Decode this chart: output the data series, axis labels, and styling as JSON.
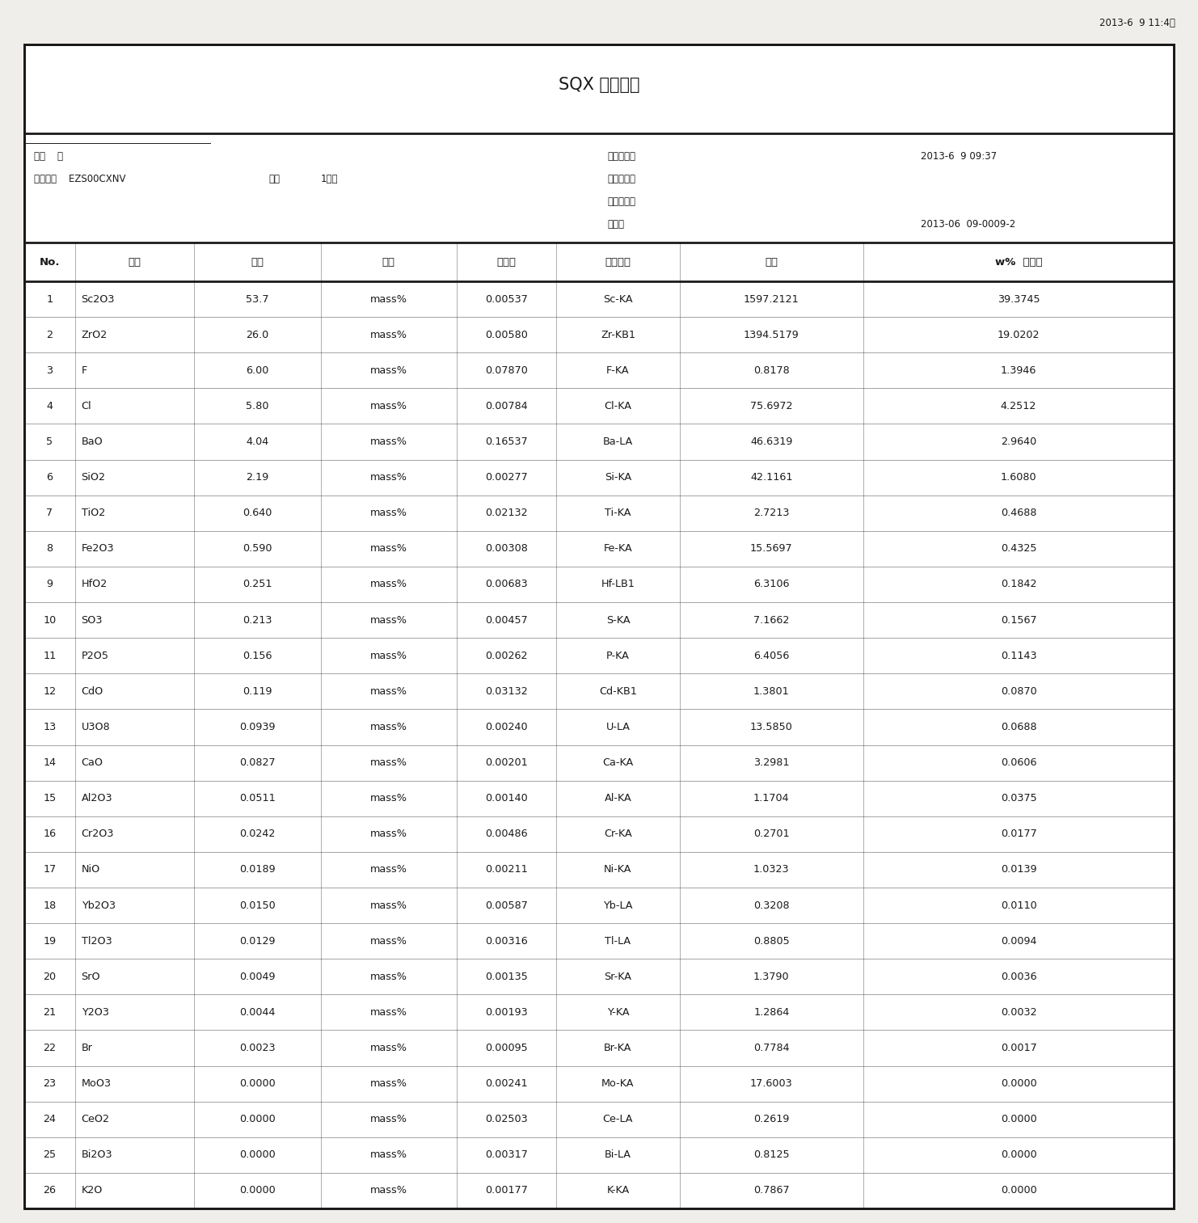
{
  "title": "SQX 计算结果",
  "timestamp_top": "2013-6  9 11:4：",
  "header_row1_left": "样品    号",
  "header_row2_left": "分析方法    EZS00CXNV",
  "header_row2_mid1": "模式",
  "header_row2_mid2": "1分析",
  "header_right_lines": [
    "分析日期：",
    "开始日期：",
    "结束日期：",
    "文件："
  ],
  "date1": "2013-6  9 09:37",
  "date2": "2013-06  09-0009-2",
  "col_headers": [
    "No.",
    "组分",
    "结果",
    "单位",
    "标准差",
    "元素谱线",
    "强度",
    "w%  《）》"
  ],
  "rows": [
    [
      "1",
      "Sc2O3",
      "53.7",
      "mass%",
      "0.00537",
      "Sc-KA",
      "1597.2121",
      "39.3745"
    ],
    [
      "2",
      "ZrO2",
      "26.0",
      "mass%",
      "0.00580",
      "Zr-KB1",
      "1394.5179",
      "19.0202"
    ],
    [
      "3",
      "F",
      "6.00",
      "mass%",
      "0.07870",
      "F-KA",
      "0.8178",
      "1.3946"
    ],
    [
      "4",
      "Cl",
      "5.80",
      "mass%",
      "0.00784",
      "Cl-KA",
      "75.6972",
      "4.2512"
    ],
    [
      "5",
      "BaO",
      "4.04",
      "mass%",
      "0.16537",
      "Ba-LA",
      "46.6319",
      "2.9640"
    ],
    [
      "6",
      "SiO2",
      "2.19",
      "mass%",
      "0.00277",
      "Si-KA",
      "42.1161",
      "1.6080"
    ],
    [
      "7",
      "TiO2",
      "0.640",
      "mass%",
      "0.02132",
      "Ti-KA",
      "2.7213",
      "0.4688"
    ],
    [
      "8",
      "Fe2O3",
      "0.590",
      "mass%",
      "0.00308",
      "Fe-KA",
      "15.5697",
      "0.4325"
    ],
    [
      "9",
      "HfO2",
      "0.251",
      "mass%",
      "0.00683",
      "Hf-LB1",
      "6.3106",
      "0.1842"
    ],
    [
      "10",
      "SO3",
      "0.213",
      "mass%",
      "0.00457",
      "S-KA",
      "7.1662",
      "0.1567"
    ],
    [
      "11",
      "P2O5",
      "0.156",
      "mass%",
      "0.00262",
      "P-KA",
      "6.4056",
      "0.1143"
    ],
    [
      "12",
      "CdO",
      "0.119",
      "mass%",
      "0.03132",
      "Cd-KB1",
      "1.3801",
      "0.0870"
    ],
    [
      "13",
      "U3O8",
      "0.0939",
      "mass%",
      "0.00240",
      "U-LA",
      "13.5850",
      "0.0688"
    ],
    [
      "14",
      "CaO",
      "0.0827",
      "mass%",
      "0.00201",
      "Ca-KA",
      "3.2981",
      "0.0606"
    ],
    [
      "15",
      "Al2O3",
      "0.0511",
      "mass%",
      "0.00140",
      "Al-KA",
      "1.1704",
      "0.0375"
    ],
    [
      "16",
      "Cr2O3",
      "0.0242",
      "mass%",
      "0.00486",
      "Cr-KA",
      "0.2701",
      "0.0177"
    ],
    [
      "17",
      "NiO",
      "0.0189",
      "mass%",
      "0.00211",
      "Ni-KA",
      "1.0323",
      "0.0139"
    ],
    [
      "18",
      "Yb2O3",
      "0.0150",
      "mass%",
      "0.00587",
      "Yb-LA",
      "0.3208",
      "0.0110"
    ],
    [
      "19",
      "Tl2O3",
      "0.0129",
      "mass%",
      "0.00316",
      "Tl-LA",
      "0.8805",
      "0.0094"
    ],
    [
      "20",
      "SrO",
      "0.0049",
      "mass%",
      "0.00135",
      "Sr-KA",
      "1.3790",
      "0.0036"
    ],
    [
      "21",
      "Y2O3",
      "0.0044",
      "mass%",
      "0.00193",
      "Y-KA",
      "1.2864",
      "0.0032"
    ],
    [
      "22",
      "Br",
      "0.0023",
      "mass%",
      "0.00095",
      "Br-KA",
      "0.7784",
      "0.0017"
    ],
    [
      "23",
      "MoO3",
      "0.0000",
      "mass%",
      "0.00241",
      "Mo-KA",
      "17.6003",
      "0.0000"
    ],
    [
      "24",
      "CeO2",
      "0.0000",
      "mass%",
      "0.02503",
      "Ce-LA",
      "0.2619",
      "0.0000"
    ],
    [
      "25",
      "Bi2O3",
      "0.0000",
      "mass%",
      "0.00317",
      "Bi-LA",
      "0.8125",
      "0.0000"
    ],
    [
      "26",
      "K2O",
      "0.0000",
      "mass%",
      "0.00177",
      "K-KA",
      "0.7867",
      "0.0000"
    ]
  ],
  "bg_color": "#f0eeeb",
  "box_bg": "#ffffff",
  "border_color": "#1a1a1a",
  "text_color": "#1a1a1a",
  "row_font_size": 9.2,
  "header_font_size": 9.5,
  "title_font_size": 15,
  "small_font_size": 8.5
}
